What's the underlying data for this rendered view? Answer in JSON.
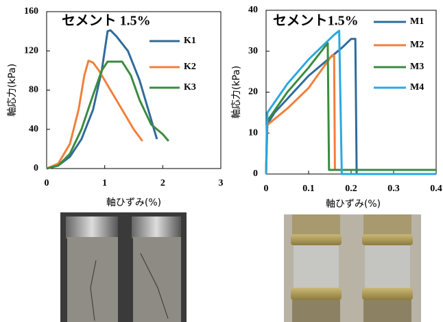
{
  "chart_data": [
    {
      "type": "line",
      "title": "セメント 1.5%",
      "x_label": "軸ひずみ(%)",
      "y_label": "軸応力(kPa)",
      "xlim": [
        0,
        3
      ],
      "xticks": [
        0,
        1,
        2,
        3
      ],
      "ylim": [
        0,
        160
      ],
      "yticks": [
        0,
        40,
        80,
        120,
        160
      ],
      "series": [
        {
          "name": "K1",
          "color": "#2f6b9a",
          "x": [
            0,
            0.2,
            0.4,
            0.6,
            0.8,
            0.95,
            1.05,
            1.1,
            1.2,
            1.4,
            1.6,
            1.75,
            1.85,
            1.9
          ],
          "values": [
            0,
            3,
            12,
            30,
            60,
            100,
            140,
            141,
            135,
            120,
            90,
            60,
            40,
            30
          ]
        },
        {
          "name": "K2",
          "color": "#f07f3c",
          "x": [
            0,
            0.2,
            0.4,
            0.55,
            0.65,
            0.72,
            0.8,
            0.9,
            1.1,
            1.3,
            1.5,
            1.65
          ],
          "values": [
            0,
            5,
            25,
            60,
            95,
            110,
            108,
            100,
            80,
            60,
            40,
            28
          ]
        },
        {
          "name": "K3",
          "color": "#3b8a3e",
          "x": [
            0,
            0.2,
            0.4,
            0.6,
            0.8,
            0.95,
            1.05,
            1.3,
            1.45,
            1.6,
            1.8,
            2.0,
            2.1
          ],
          "values": [
            0,
            3,
            15,
            40,
            75,
            100,
            109,
            109,
            95,
            70,
            45,
            35,
            28
          ]
        }
      ]
    },
    {
      "type": "line",
      "title": "セメント1.5%",
      "x_label": "軸ひずみ(%)",
      "y_label": "軸応力(kPa)",
      "xlim": [
        0,
        0.4
      ],
      "xticks": [
        0,
        0.1,
        0.2,
        0.3,
        0.4
      ],
      "ylim": [
        0,
        40
      ],
      "yticks": [
        0,
        10,
        20,
        30,
        40
      ],
      "series": [
        {
          "name": "M1",
          "color": "#2f6b9a",
          "x": [
            0,
            0.002,
            0.02,
            0.1,
            0.18,
            0.2,
            0.21,
            0.213,
            0.4
          ],
          "values": [
            0,
            12,
            15,
            24,
            31,
            33,
            33,
            0,
            0
          ]
        },
        {
          "name": "M2",
          "color": "#f07f3c",
          "x": [
            0,
            0.003,
            0.05,
            0.1,
            0.155,
            0.16,
            0.162,
            0.4
          ],
          "values": [
            0,
            12,
            16,
            21,
            29,
            29,
            1,
            1
          ]
        },
        {
          "name": "M3",
          "color": "#3b8a3e",
          "x": [
            0,
            0.003,
            0.05,
            0.1,
            0.145,
            0.148,
            0.4
          ],
          "values": [
            0,
            13,
            20,
            26,
            32,
            1,
            1
          ]
        },
        {
          "name": "M4",
          "color": "#29a8e0",
          "x": [
            0,
            0.003,
            0.05,
            0.1,
            0.16,
            0.172,
            0.178,
            0.4
          ],
          "values": [
            0,
            15,
            22,
            28,
            34,
            35,
            0,
            0
          ]
        }
      ]
    }
  ]
}
